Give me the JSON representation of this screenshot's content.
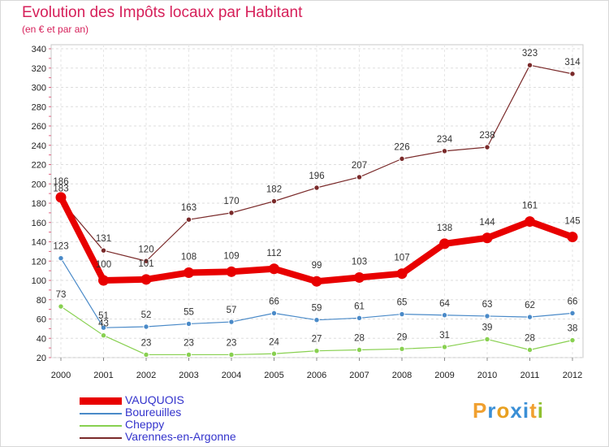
{
  "header": {
    "title": "Evolution des Impôts locaux par Habitant",
    "subtitle": "(en € et par an)"
  },
  "logo": {
    "letters": [
      "P",
      "r",
      "o",
      "x",
      "i",
      "t",
      "i"
    ],
    "colors": [
      "#f0a030",
      "#3a8fd6",
      "#e8a020",
      "#3a8fd6",
      "#3a8fd6",
      "#f0a030",
      "#90c030"
    ]
  },
  "chart_data": {
    "type": "line",
    "title": "Evolution des Impôts locaux par Habitant",
    "subtitle": "(en € et par an)",
    "xlabel": "",
    "ylabel": "",
    "ylim": [
      20,
      340
    ],
    "yticks": [
      20,
      40,
      60,
      80,
      100,
      120,
      140,
      160,
      180,
      200,
      220,
      240,
      260,
      280,
      300,
      320,
      340
    ],
    "grid": true,
    "legend_position": "bottom-left",
    "categories": [
      "2000",
      "2001",
      "2002",
      "2003",
      "2004",
      "2005",
      "2006",
      "2007",
      "2008",
      "2009",
      "2010",
      "2011",
      "2012"
    ],
    "series": [
      {
        "name": "VAUQUOIS",
        "color": "#e80000",
        "values": [
          186,
          100,
          101,
          108,
          109,
          112,
          99,
          103,
          107,
          138,
          144,
          161,
          145
        ]
      },
      {
        "name": "Boureuilles",
        "color": "#4a8ac8",
        "values": [
          123,
          51,
          52,
          55,
          57,
          66,
          59,
          61,
          65,
          64,
          63,
          62,
          66
        ]
      },
      {
        "name": "Cheppy",
        "color": "#88d050",
        "values": [
          73,
          43,
          23,
          23,
          23,
          24,
          27,
          28,
          29,
          31,
          39,
          28,
          38
        ]
      },
      {
        "name": "Varennes-en-Argonne",
        "color": "#7a2a2a",
        "values": [
          183,
          131,
          120,
          163,
          170,
          182,
          196,
          207,
          226,
          234,
          238,
          323,
          314
        ]
      }
    ]
  }
}
